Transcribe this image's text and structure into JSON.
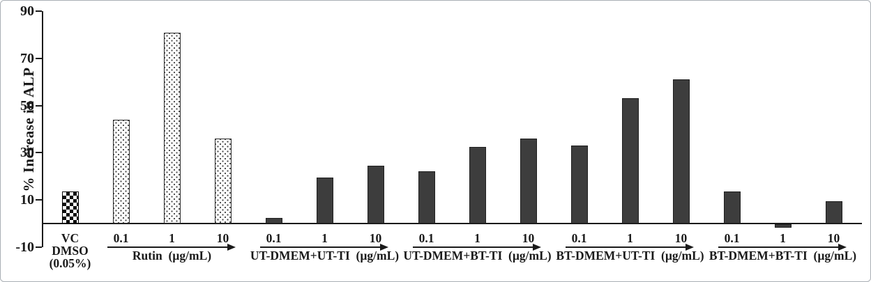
{
  "figure": {
    "border_color": "#a9aeb4",
    "background_color": "#ffffff",
    "text_color": "#1a1a1a"
  },
  "chart_data": {
    "type": "bar",
    "title": "",
    "xlabel": "",
    "ylabel": "% Increase in ALP",
    "ylim": [
      -10,
      90
    ],
    "yticks": [
      -10,
      10,
      30,
      50,
      70,
      90
    ],
    "grid": false,
    "legend": "none",
    "bar_colors": {
      "solid": "#3d3d3d",
      "checker": "black-white-checkerboard",
      "dotted": "white-stipple-dots"
    },
    "groups": [
      {
        "label": "VC DMSO (0.05%)",
        "label_lines": [
          "VC",
          "DMSO",
          "(0.05%)"
        ],
        "arrow": false,
        "style": "checker",
        "bars": [
          {
            "tick": "",
            "value": 13.5
          }
        ]
      },
      {
        "label": "Rutin  (µg/mL)",
        "arrow": true,
        "style": "dotted",
        "bars": [
          {
            "tick": "0.1",
            "value": 44
          },
          {
            "tick": "1",
            "value": 81
          },
          {
            "tick": "10",
            "value": 36
          }
        ]
      },
      {
        "label": "UT-DMEM+UT-TI  (µg/mL)",
        "arrow": true,
        "style": "solid",
        "bars": [
          {
            "tick": "0.1",
            "value": 2.5
          },
          {
            "tick": "1",
            "value": 19.5
          },
          {
            "tick": "10",
            "value": 24.5
          }
        ]
      },
      {
        "label": "UT-DMEM+BT-TI  (µg/mL)",
        "arrow": true,
        "style": "solid",
        "bars": [
          {
            "tick": "0.1",
            "value": 22
          },
          {
            "tick": "1",
            "value": 32.5
          },
          {
            "tick": "10",
            "value": 36
          }
        ]
      },
      {
        "label": "BT-DMEM+UT-TI  (µg/mL)",
        "arrow": true,
        "style": "solid",
        "bars": [
          {
            "tick": "0.1",
            "value": 33
          },
          {
            "tick": "1",
            "value": 53
          },
          {
            "tick": "10",
            "value": 61
          }
        ]
      },
      {
        "label": "BT-DMEM+BT-TI  (µg/mL)",
        "arrow": true,
        "style": "solid",
        "bars": [
          {
            "tick": "0.1",
            "value": 13.5
          },
          {
            "tick": "1",
            "value": -1.5
          },
          {
            "tick": "10",
            "value": 9.5
          }
        ]
      }
    ]
  }
}
